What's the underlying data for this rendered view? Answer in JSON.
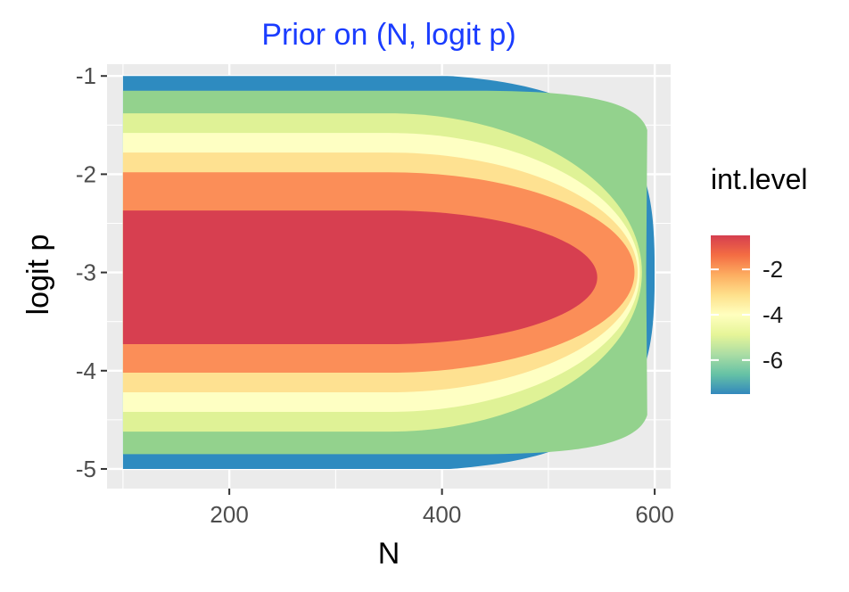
{
  "chart_data": {
    "type": "heatmap",
    "subtype": "filled-contour",
    "title": "Prior on (N, logit p)",
    "xlabel": "N",
    "ylabel": "logit p",
    "xlim": [
      85,
      615
    ],
    "ylim": [
      -5.2,
      -0.88
    ],
    "data_extent": {
      "x": [
        100,
        600
      ],
      "y": [
        -5,
        -1
      ]
    },
    "x_ticks": [
      200,
      400,
      600
    ],
    "x_tick_labels": [
      "200",
      "400",
      "600"
    ],
    "y_ticks": [
      -1,
      -2,
      -3,
      -4,
      -5
    ],
    "y_tick_labels": [
      "-1",
      "-2",
      "-3",
      "-4",
      "-5"
    ],
    "grid": true,
    "panel_background": "#ebebeb",
    "grid_color": "#ffffff",
    "legend": {
      "title": "int.level",
      "placement": "right",
      "range": [
        -7.5,
        -0.5
      ],
      "ticks": [
        -2,
        -4,
        -6
      ],
      "tick_labels": [
        "-2",
        "-4",
        "-6"
      ],
      "colors": [
        "#3288bd",
        "#66c2a5",
        "#abdda4",
        "#e6f598",
        "#ffffbf",
        "#fee08b",
        "#fdae61",
        "#f46d43",
        "#d53e4f"
      ]
    },
    "levels": [
      {
        "level": -7,
        "color": "#2e8bc0",
        "x_mid": 350,
        "y_center": -3.0,
        "y_half": 2.02,
        "x_right": 600
      },
      {
        "level": -6.5,
        "color": "#93d28d",
        "x_mid": 350,
        "y_center": -3.0,
        "y_half": 1.85,
        "x_right": 592
      },
      {
        "level": -6,
        "color": "#dff296",
        "x_mid": 350,
        "y_center": -3.0,
        "y_half": 1.62,
        "x_right": 588
      },
      {
        "level": -5,
        "color": "#feffc3",
        "x_mid": 350,
        "y_center": -3.0,
        "y_half": 1.42,
        "x_right": 586
      },
      {
        "level": -4,
        "color": "#fee191",
        "x_mid": 350,
        "y_center": -3.0,
        "y_half": 1.22,
        "x_right": 584
      },
      {
        "level": -3,
        "color": "#fb8e58",
        "x_mid": 350,
        "y_center": -3.0,
        "y_half": 1.02,
        "x_right": 581
      },
      {
        "level": -1.5,
        "color": "#d73f50",
        "x_mid": 350,
        "y_center": -3.05,
        "y_half": 0.68,
        "x_right": 546
      }
    ]
  }
}
